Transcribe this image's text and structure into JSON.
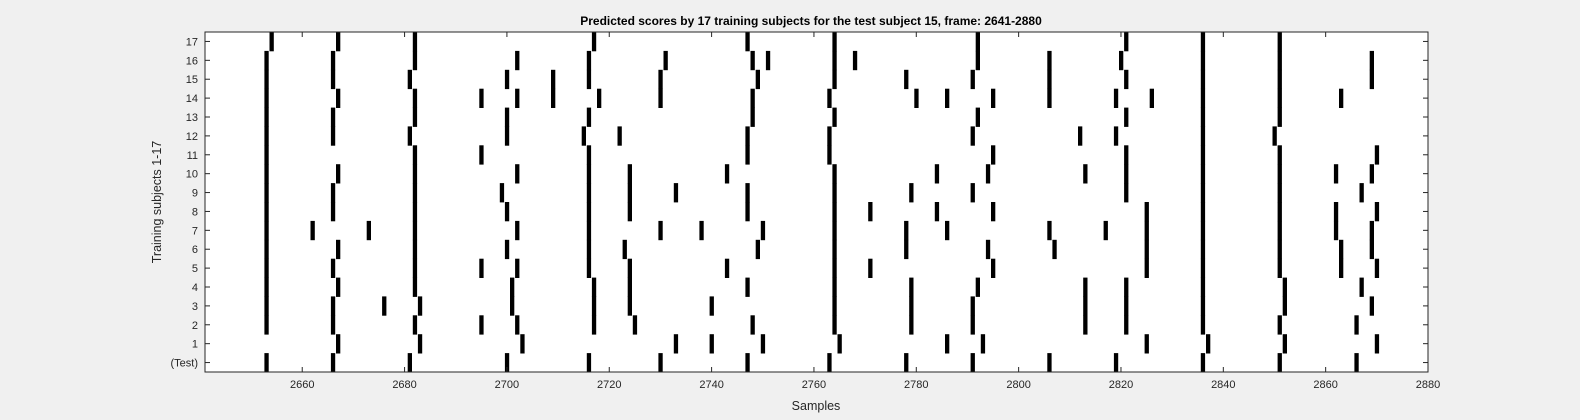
{
  "chart_data": {
    "type": "scatter",
    "marker": "vertical-bar",
    "title": "Predicted scores by 17 training subjects for the test subject 15, frame: 2641-2880",
    "xlabel": "Samples",
    "ylabel": "Training subjects 1-17",
    "xlim": [
      2641,
      2880
    ],
    "xticks": [
      2660,
      2680,
      2700,
      2720,
      2740,
      2760,
      2780,
      2800,
      2820,
      2840,
      2860,
      2880
    ],
    "rows": [
      "(Test)",
      "1",
      "2",
      "3",
      "4",
      "5",
      "6",
      "7",
      "8",
      "9",
      "10",
      "11",
      "12",
      "13",
      "14",
      "15",
      "16",
      "17"
    ],
    "grid": false,
    "marker_color": "#000000",
    "series": [
      {
        "row": "(Test)",
        "x": [
          2653,
          2666,
          2681,
          2700,
          2716,
          2730,
          2747,
          2763,
          2778,
          2791,
          2806,
          2819,
          2836,
          2851,
          2866
        ]
      },
      {
        "row": "1",
        "x": [
          2667,
          2683,
          2703,
          2733,
          2740,
          2750,
          2765,
          2786,
          2793,
          2825,
          2837,
          2852,
          2870
        ]
      },
      {
        "row": "2",
        "x": [
          2653,
          2666,
          2682,
          2695,
          2702,
          2717,
          2725,
          2748,
          2764,
          2779,
          2791,
          2813,
          2821,
          2836,
          2851,
          2866
        ]
      },
      {
        "row": "3",
        "x": [
          2653,
          2666,
          2676,
          2683,
          2701,
          2717,
          2724,
          2740,
          2764,
          2779,
          2791,
          2813,
          2821,
          2836,
          2852,
          2869
        ]
      },
      {
        "row": "4",
        "x": [
          2653,
          2667,
          2682,
          2701,
          2717,
          2724,
          2747,
          2764,
          2779,
          2792,
          2813,
          2821,
          2836,
          2852,
          2867
        ]
      },
      {
        "row": "5",
        "x": [
          2653,
          2666,
          2682,
          2695,
          2702,
          2716,
          2724,
          2743,
          2764,
          2771,
          2795,
          2825,
          2836,
          2851,
          2863,
          2870
        ]
      },
      {
        "row": "6",
        "x": [
          2653,
          2667,
          2682,
          2700,
          2716,
          2723,
          2749,
          2764,
          2778,
          2794,
          2807,
          2825,
          2836,
          2851,
          2863,
          2869
        ]
      },
      {
        "row": "7",
        "x": [
          2653,
          2662,
          2673,
          2682,
          2702,
          2716,
          2730,
          2738,
          2750,
          2764,
          2778,
          2786,
          2806,
          2817,
          2825,
          2836,
          2851,
          2862,
          2869
        ]
      },
      {
        "row": "8",
        "x": [
          2653,
          2666,
          2682,
          2700,
          2716,
          2724,
          2747,
          2764,
          2771,
          2784,
          2795,
          2825,
          2836,
          2851,
          2862,
          2870
        ]
      },
      {
        "row": "9",
        "x": [
          2653,
          2666,
          2682,
          2699,
          2716,
          2724,
          2733,
          2747,
          2764,
          2779,
          2791,
          2821,
          2836,
          2851,
          2867
        ]
      },
      {
        "row": "10",
        "x": [
          2653,
          2667,
          2682,
          2702,
          2716,
          2724,
          2743,
          2764,
          2784,
          2794,
          2813,
          2821,
          2836,
          2851,
          2862,
          2869
        ]
      },
      {
        "row": "11",
        "x": [
          2653,
          2682,
          2695,
          2716,
          2747,
          2763,
          2795,
          2821,
          2836,
          2851,
          2870
        ]
      },
      {
        "row": "12",
        "x": [
          2653,
          2666,
          2681,
          2700,
          2715,
          2722,
          2747,
          2763,
          2791,
          2812,
          2819,
          2836,
          2850
        ]
      },
      {
        "row": "13",
        "x": [
          2653,
          2666,
          2682,
          2700,
          2716,
          2748,
          2764,
          2792,
          2821,
          2836,
          2851
        ]
      },
      {
        "row": "14",
        "x": [
          2653,
          2667,
          2682,
          2695,
          2702,
          2709,
          2718,
          2730,
          2748,
          2763,
          2780,
          2786,
          2795,
          2806,
          2819,
          2826,
          2836,
          2851,
          2863
        ]
      },
      {
        "row": "15",
        "x": [
          2653,
          2666,
          2681,
          2700,
          2709,
          2716,
          2730,
          2749,
          2764,
          2778,
          2791,
          2806,
          2821,
          2836,
          2851,
          2869
        ]
      },
      {
        "row": "16",
        "x": [
          2653,
          2666,
          2682,
          2702,
          2716,
          2731,
          2748,
          2751,
          2764,
          2768,
          2792,
          2806,
          2820,
          2836,
          2851,
          2869
        ]
      },
      {
        "row": "17",
        "x": [
          2654,
          2667,
          2682,
          2717,
          2747,
          2764,
          2792,
          2821,
          2836,
          2851
        ]
      }
    ]
  }
}
